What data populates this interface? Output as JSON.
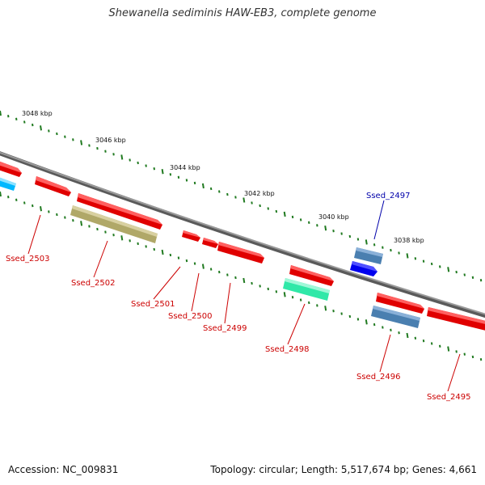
{
  "title": "Shewanella sediminis HAW-EB3, complete genome",
  "footer": {
    "accession": "Accession: NC_009831",
    "summary": "Topology: circular; Length: 5,517,674 bp; Genes: 4,661"
  },
  "colors": {
    "backbone": "#858585",
    "tick": "#207a20",
    "forward_gene": "#e00000",
    "label_red": "#cc0000",
    "label_blue": "#0000aa",
    "cyan_gene": "#00b8ff",
    "olive_gene": "#b8b078",
    "mint_gene": "#30e8a8",
    "steel_gene": "#4a7fb0",
    "blue_gene": "#0000ee"
  },
  "kbp_labels": [
    {
      "text": "3048 kbp",
      "kbp": 3048
    },
    {
      "text": "3046 kbp",
      "kbp": 3046
    },
    {
      "text": "3044 kbp",
      "kbp": 3044
    },
    {
      "text": "3042 kbp",
      "kbp": 3042
    },
    {
      "text": "3040 kbp",
      "kbp": 3040
    },
    {
      "text": "3038 kbp",
      "kbp": 3038
    }
  ],
  "genes": [
    {
      "name": "Ssed_2503",
      "color": "label_red"
    },
    {
      "name": "Ssed_2502",
      "color": "label_red"
    },
    {
      "name": "Ssed_2501",
      "color": "label_red"
    },
    {
      "name": "Ssed_2500",
      "color": "label_red"
    },
    {
      "name": "Ssed_2499",
      "color": "label_red"
    },
    {
      "name": "Ssed_2498",
      "color": "label_red"
    },
    {
      "name": "Ssed_2497",
      "color": "label_blue"
    },
    {
      "name": "Ssed_2496",
      "color": "label_red"
    },
    {
      "name": "Ssed_2495",
      "color": "label_red"
    }
  ]
}
